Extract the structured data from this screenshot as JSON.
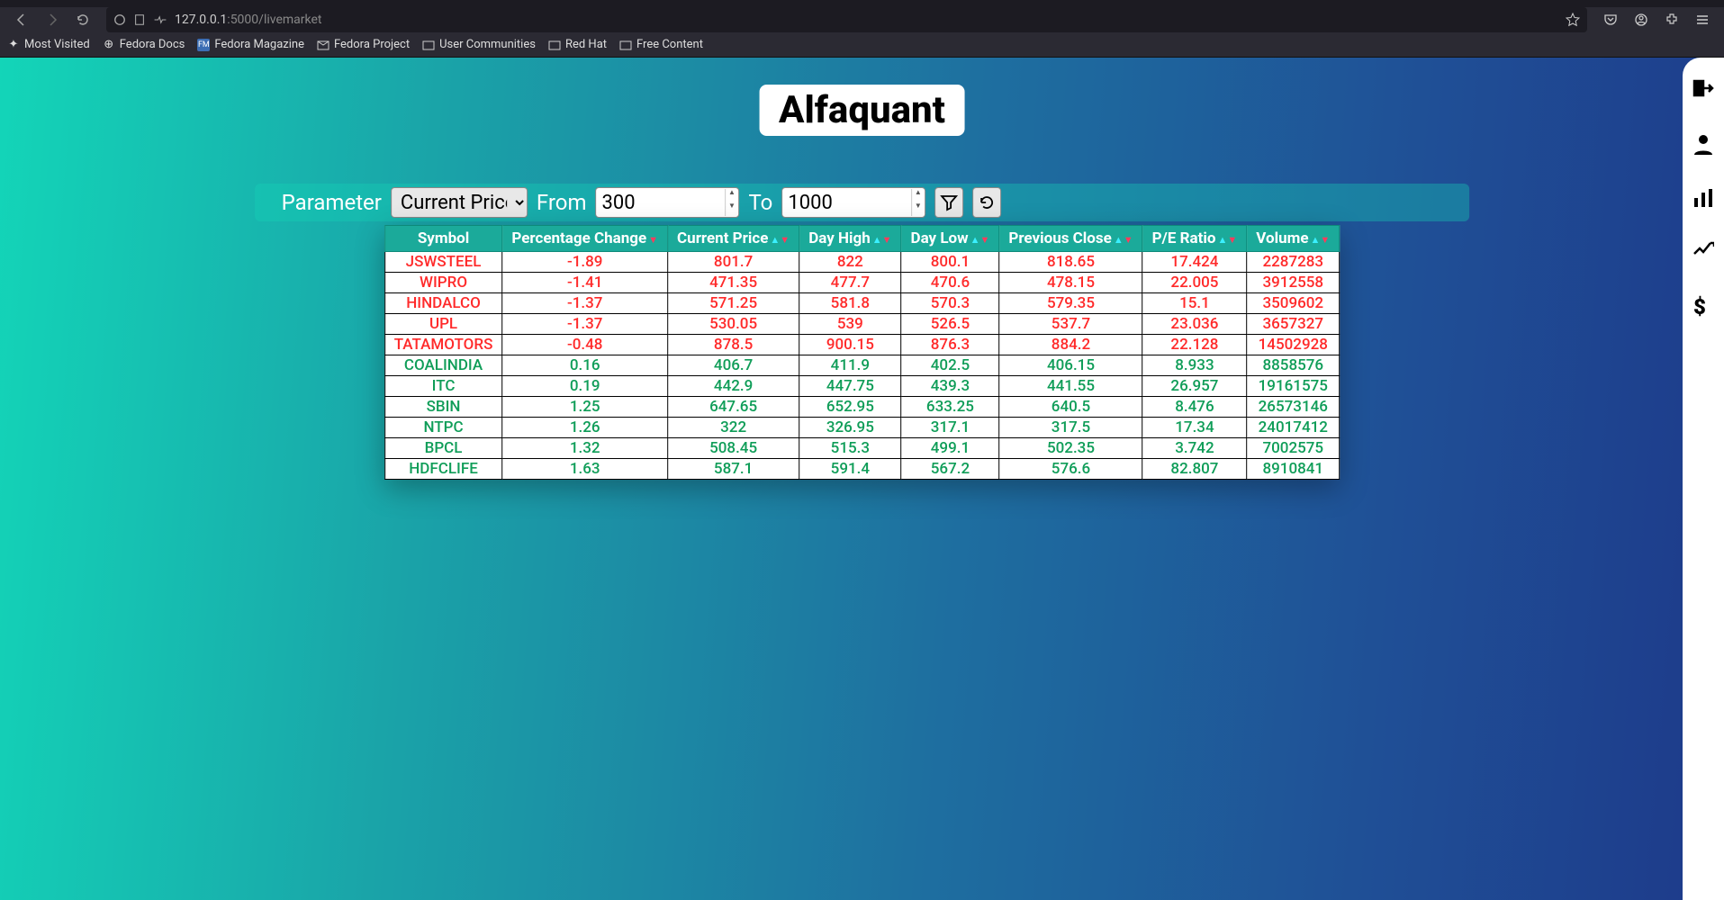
{
  "browser": {
    "url_host": "127.0.0.1",
    "url_port": ":5000",
    "url_path": "/livemarket",
    "bookmarks": [
      "Most Visited",
      "Fedora Docs",
      "Fedora Magazine",
      "Fedora Project",
      "User Communities",
      "Red Hat",
      "Free Content"
    ]
  },
  "page": {
    "title": "Alfaquant",
    "filter": {
      "param_label": "Parameter",
      "param_value": "Current Price",
      "from_label": "From",
      "from_value": "300",
      "to_label": "To",
      "to_value": "1000"
    },
    "columns": [
      "Symbol",
      "Percentage Change",
      "Current Price",
      "Day High",
      "Day Low",
      "Previous Close",
      "P/E Ratio",
      "Volume"
    ],
    "column_sort": [
      "none",
      "desc",
      "both",
      "both",
      "both",
      "both",
      "both",
      "both"
    ],
    "rows": [
      {
        "dir": "neg",
        "cells": [
          "JSWSTEEL",
          "-1.89",
          "801.7",
          "822",
          "800.1",
          "818.65",
          "17.424",
          "2287283"
        ]
      },
      {
        "dir": "neg",
        "cells": [
          "WIPRO",
          "-1.41",
          "471.35",
          "477.7",
          "470.6",
          "478.15",
          "22.005",
          "3912558"
        ]
      },
      {
        "dir": "neg",
        "cells": [
          "HINDALCO",
          "-1.37",
          "571.25",
          "581.8",
          "570.3",
          "579.35",
          "15.1",
          "3509602"
        ]
      },
      {
        "dir": "neg",
        "cells": [
          "UPL",
          "-1.37",
          "530.05",
          "539",
          "526.5",
          "537.7",
          "23.036",
          "3657327"
        ]
      },
      {
        "dir": "neg",
        "cells": [
          "TATAMOTORS",
          "-0.48",
          "878.5",
          "900.15",
          "876.3",
          "884.2",
          "22.128",
          "14502928"
        ]
      },
      {
        "dir": "pos",
        "cells": [
          "COALINDIA",
          "0.16",
          "406.7",
          "411.9",
          "402.5",
          "406.15",
          "8.933",
          "8858576"
        ]
      },
      {
        "dir": "pos",
        "cells": [
          "ITC",
          "0.19",
          "442.9",
          "447.75",
          "439.3",
          "441.55",
          "26.957",
          "19161575"
        ]
      },
      {
        "dir": "pos",
        "cells": [
          "SBIN",
          "1.25",
          "647.65",
          "652.95",
          "633.25",
          "640.5",
          "8.476",
          "26573146"
        ]
      },
      {
        "dir": "pos",
        "cells": [
          "NTPC",
          "1.26",
          "322",
          "326.95",
          "317.1",
          "317.5",
          "17.34",
          "24017412"
        ]
      },
      {
        "dir": "pos",
        "cells": [
          "BPCL",
          "1.32",
          "508.45",
          "515.3",
          "499.1",
          "502.35",
          "3.742",
          "7002575"
        ]
      },
      {
        "dir": "pos",
        "cells": [
          "HDFCLIFE",
          "1.63",
          "587.1",
          "591.4",
          "567.2",
          "576.6",
          "82.807",
          "8910841"
        ]
      }
    ]
  }
}
